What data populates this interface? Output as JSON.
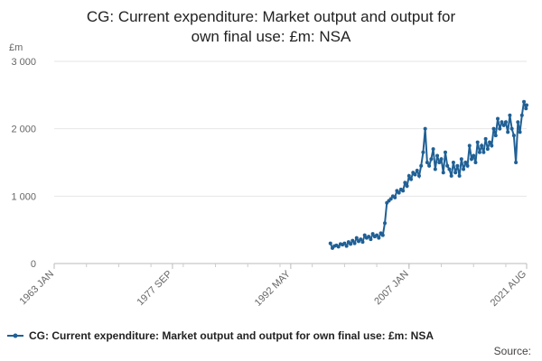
{
  "chart_data": {
    "type": "line",
    "title": [
      "CG: Current expenditure: Market output and output for",
      "own final use: £m: NSA"
    ],
    "y_label": "£m",
    "source": "Source:",
    "x": [
      "1997 APR",
      "1997 JUL",
      "1997 OCT",
      "1998 JAN",
      "1998 APR",
      "1998 JUL",
      "1998 OCT",
      "1999 JAN",
      "1999 APR",
      "1999 JUL",
      "1999 OCT",
      "2000 JAN",
      "2000 APR",
      "2000 JUL",
      "2000 OCT",
      "2001 JAN",
      "2001 APR",
      "2001 JUL",
      "2001 OCT",
      "2002 JAN",
      "2002 APR",
      "2002 JUL",
      "2002 OCT",
      "2003 JAN",
      "2003 APR",
      "2003 JUL",
      "2003 OCT",
      "2004 JAN",
      "2004 APR",
      "2004 JUL",
      "2004 OCT",
      "2005 JAN",
      "2005 APR",
      "2005 JUL",
      "2005 OCT",
      "2006 JAN",
      "2006 APR",
      "2006 JUL",
      "2006 OCT",
      "2007 JAN",
      "2007 APR",
      "2007 JUL",
      "2007 OCT",
      "2008 JAN",
      "2008 APR",
      "2008 JUL",
      "2008 OCT",
      "2009 JAN",
      "2009 APR",
      "2009 JUL",
      "2009 OCT",
      "2010 JAN",
      "2010 APR",
      "2010 JUL",
      "2010 OCT",
      "2011 JAN",
      "2011 APR",
      "2011 JUL",
      "2011 OCT",
      "2012 JAN",
      "2012 APR",
      "2012 JUL",
      "2012 OCT",
      "2013 JAN",
      "2013 APR",
      "2013 JUL",
      "2013 OCT",
      "2014 JAN",
      "2014 APR",
      "2014 JUL",
      "2014 OCT",
      "2015 JAN",
      "2015 APR",
      "2015 JUL",
      "2015 OCT",
      "2016 JAN",
      "2016 APR",
      "2016 JUL",
      "2016 OCT",
      "2017 JAN",
      "2017 APR",
      "2017 JUL",
      "2017 OCT",
      "2018 JAN",
      "2018 APR",
      "2018 JUL",
      "2018 OCT",
      "2019 JAN",
      "2019 APR",
      "2019 JUL",
      "2019 OCT",
      "2020 JAN",
      "2020 APR",
      "2020 JUL",
      "2020 OCT",
      "2021 JAN",
      "2021 APR",
      "2021 JUL",
      "2021 AUG"
    ],
    "series": [
      {
        "name": "CG: Current expenditure: Market output and output for own final use: £m: NSA",
        "color": "#206095",
        "values": [
          300,
          230,
          260,
          270,
          250,
          290,
          280,
          300,
          260,
          320,
          290,
          340,
          300,
          380,
          330,
          360,
          320,
          420,
          380,
          400,
          360,
          440,
          400,
          420,
          380,
          450,
          420,
          600,
          900,
          930,
          960,
          1000,
          980,
          1080,
          1050,
          1100,
          1080,
          1200,
          1150,
          1300,
          1250,
          1350,
          1320,
          1380,
          1300,
          1450,
          1650,
          2000,
          1500,
          1450,
          1550,
          1700,
          1400,
          1600,
          1500,
          1550,
          1350,
          1650,
          1450,
          1400,
          1300,
          1500,
          1350,
          1450,
          1300,
          1550,
          1400,
          1500,
          1450,
          1750,
          1550,
          1600,
          1500,
          1800,
          1650,
          1750,
          1650,
          1850,
          1700,
          1800,
          1750,
          2000,
          1900,
          2150,
          2000,
          2100,
          2050,
          2100,
          1950,
          2200,
          2000,
          1900,
          1500,
          2100,
          1950,
          2200,
          2400,
          2300,
          2350
        ]
      }
    ],
    "xlim": [
      "1963 JAN",
      "2021 AUG"
    ],
    "xticks": [
      "1963 JAN",
      "1977 SEP",
      "1992 MAY",
      "2007 JAN",
      "2021 AUG"
    ],
    "ylim": [
      0,
      3000
    ],
    "yticks": [
      0,
      {
        "value": 1000,
        "label": "1 000"
      },
      {
        "value": 2000,
        "label": "2 000"
      },
      {
        "value": 3000,
        "label": "3 000"
      }
    ],
    "grid": true
  }
}
